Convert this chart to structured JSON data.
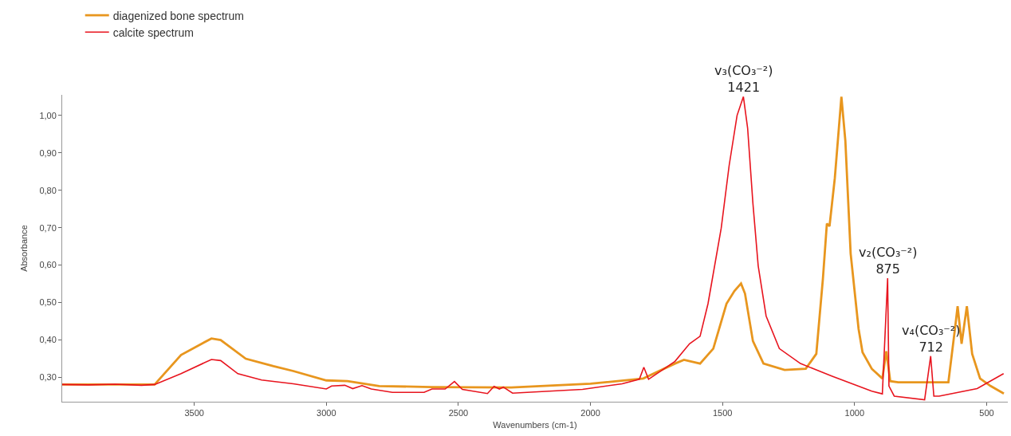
{
  "chart_data": {
    "type": "line",
    "xlabel": "Wavenumbers (cm-1)",
    "ylabel": "Absorbance",
    "xlim": [
      4000,
      420
    ],
    "ylim": [
      0.235,
      1.055
    ],
    "xticks": [
      3500,
      3000,
      2500,
      2000,
      1500,
      1000,
      500
    ],
    "yticks": [
      {
        "value": 0.3,
        "label": "0,30"
      },
      {
        "value": 0.4,
        "label": "0,40"
      },
      {
        "value": 0.5,
        "label": "0,50"
      },
      {
        "value": 0.6,
        "label": "0,60"
      },
      {
        "value": 0.7,
        "label": "0,70"
      },
      {
        "value": 0.8,
        "label": "0,80"
      },
      {
        "value": 0.9,
        "label": "0,90"
      },
      {
        "value": 1.0,
        "label": "1,00"
      }
    ],
    "grid": false,
    "legend": "top left",
    "marker": "none",
    "line_style": "solid",
    "series": [
      {
        "name": "diagenized bone spectrum",
        "color": "#e8961e",
        "x": [
          4000,
          3800,
          3650,
          3550,
          3435,
          3400,
          3305,
          3200,
          3125,
          3000,
          2920,
          2800,
          2600,
          2300,
          2000,
          1800,
          1680,
          1646,
          1585,
          1535,
          1485,
          1455,
          1430,
          1415,
          1385,
          1345,
          1265,
          1185,
          1145,
          1120,
          1105,
          1095,
          1075,
          1050,
          1035,
          1015,
          985,
          970,
          935,
          895,
          880,
          865,
          835,
          645,
          620,
          610,
          595,
          575,
          555,
          525,
          485,
          435
        ],
        "values": [
          0.281,
          0.281,
          0.281,
          0.36,
          0.404,
          0.4,
          0.35,
          0.33,
          0.317,
          0.292,
          0.29,
          0.277,
          0.274,
          0.273,
          0.283,
          0.297,
          0.337,
          0.347,
          0.337,
          0.377,
          0.497,
          0.531,
          0.551,
          0.524,
          0.397,
          0.337,
          0.32,
          0.323,
          0.363,
          0.564,
          0.711,
          0.704,
          0.832,
          1.05,
          0.932,
          0.631,
          0.43,
          0.367,
          0.323,
          0.297,
          0.37,
          0.29,
          0.287,
          0.287,
          0.43,
          0.49,
          0.39,
          0.49,
          0.363,
          0.297,
          0.277,
          0.257
        ]
      },
      {
        "name": "calcite spectrum",
        "color": "#e8141e",
        "x": [
          4000,
          3900,
          3800,
          3700,
          3650,
          3550,
          3435,
          3400,
          3335,
          3245,
          3125,
          3000,
          2980,
          2930,
          2900,
          2865,
          2830,
          2750,
          2630,
          2600,
          2550,
          2515,
          2485,
          2390,
          2365,
          2345,
          2330,
          2295,
          2030,
          1880,
          1815,
          1798,
          1780,
          1680,
          1625,
          1585,
          1555,
          1505,
          1475,
          1445,
          1421,
          1405,
          1385,
          1365,
          1335,
          1285,
          1205,
          1085,
          935,
          895,
          875,
          870,
          850,
          735,
          712,
          700,
          680,
          536,
          436
        ],
        "values": [
          0.281,
          0.28,
          0.282,
          0.279,
          0.281,
          0.31,
          0.348,
          0.345,
          0.31,
          0.293,
          0.283,
          0.269,
          0.277,
          0.279,
          0.27,
          0.278,
          0.269,
          0.26,
          0.26,
          0.269,
          0.269,
          0.289,
          0.268,
          0.257,
          0.276,
          0.269,
          0.274,
          0.258,
          0.268,
          0.283,
          0.295,
          0.327,
          0.295,
          0.343,
          0.39,
          0.41,
          0.497,
          0.699,
          0.866,
          1.0,
          1.05,
          0.966,
          0.765,
          0.598,
          0.464,
          0.377,
          0.337,
          0.303,
          0.263,
          0.256,
          0.565,
          0.277,
          0.25,
          0.24,
          0.357,
          0.25,
          0.25,
          0.27,
          0.31
        ]
      }
    ],
    "annotations": [
      {
        "text": "v₃(CO₃⁻²)\n1421",
        "x": 1421,
        "y": 1.05
      },
      {
        "text": "v₂(CO₃⁻²)\n875",
        "x": 875,
        "y": 0.565
      },
      {
        "text": "v₄(CO₃⁻²)\n712",
        "x": 712,
        "y": 0.357
      }
    ]
  }
}
